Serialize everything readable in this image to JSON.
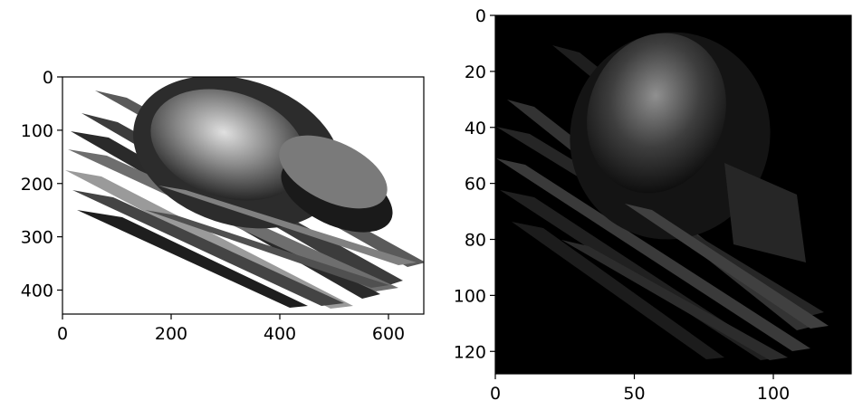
{
  "chart_data": [
    {
      "type": "image",
      "title": "",
      "xlabel": "",
      "ylabel": "",
      "xlim": [
        0,
        665
      ],
      "ylim": [
        445,
        0
      ],
      "x_ticks": [
        0,
        200,
        400,
        600
      ],
      "y_ticks": [
        0,
        100,
        200,
        300,
        400
      ],
      "x_tick_labels": [
        "0",
        "200",
        "400",
        "600"
      ],
      "y_tick_labels": [
        "0",
        "100",
        "200",
        "300",
        "400"
      ],
      "background": "#ffffff",
      "colormap": "gray",
      "content": "grayscale shaded render of curved shell with ribbon strips"
    },
    {
      "type": "image",
      "title": "",
      "xlabel": "",
      "ylabel": "",
      "xlim": [
        0,
        128
      ],
      "ylim": [
        128,
        0
      ],
      "x_ticks": [
        0,
        50,
        100
      ],
      "y_ticks": [
        0,
        20,
        40,
        60,
        80,
        100,
        120
      ],
      "x_tick_labels": [
        "0",
        "50",
        "100"
      ],
      "y_tick_labels": [
        "0",
        "20",
        "40",
        "60",
        "80",
        "100",
        "120"
      ],
      "background": "#000000",
      "colormap": "gray",
      "content": "low-resolution dark version of the same render"
    }
  ]
}
